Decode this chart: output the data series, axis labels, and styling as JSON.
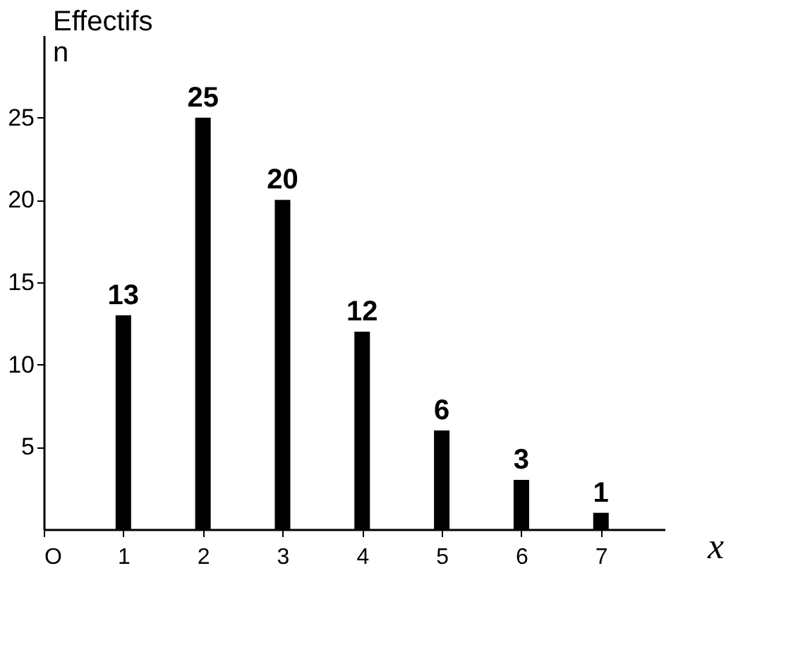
{
  "chart_data": {
    "type": "bar",
    "xlabel": "x",
    "ylabel": "Effectifs\nn",
    "x": [
      1,
      2,
      3,
      4,
      5,
      6,
      7
    ],
    "values": [
      13,
      25,
      20,
      12,
      6,
      3,
      1
    ],
    "color": "#000000",
    "xlim": [
      0,
      7.8
    ],
    "xticks": [
      {
        "value": 0,
        "label": "O"
      },
      1,
      2,
      3,
      4,
      5,
      6,
      7
    ],
    "ylim": [
      0,
      30
    ],
    "yticks": [
      5,
      10,
      15,
      20,
      25
    ],
    "data_labels": true,
    "grid": false
  }
}
